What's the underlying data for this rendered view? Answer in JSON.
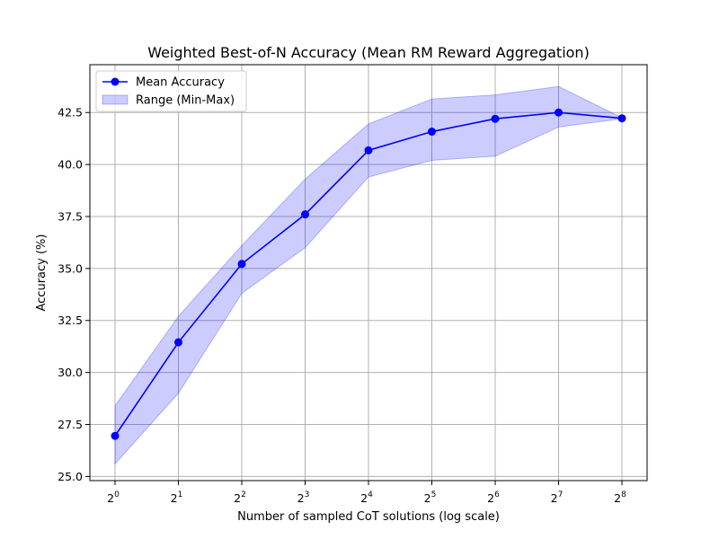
{
  "chart_data": {
    "type": "line",
    "title": "Weighted Best-of-N Accuracy (Mean RM Reward Aggregation)",
    "xlabel": "Number of sampled CoT solutions (log scale)",
    "ylabel": "Accuracy (%)",
    "x_scale": "log2",
    "x": [
      1,
      2,
      4,
      8,
      16,
      32,
      64,
      128,
      256
    ],
    "x_tick_base": "2",
    "x_tick_exponents": [
      "0",
      "1",
      "2",
      "3",
      "4",
      "5",
      "6",
      "7",
      "8"
    ],
    "ylim": [
      24.8,
      44.8
    ],
    "y_ticks": [
      25.0,
      27.5,
      30.0,
      32.5,
      35.0,
      37.5,
      40.0,
      42.5
    ],
    "y_tick_labels": [
      "25.0",
      "27.5",
      "30.0",
      "32.5",
      "35.0",
      "37.5",
      "40.0",
      "42.5"
    ],
    "grid": true,
    "legend_position": "top-left",
    "series": [
      {
        "name": "Mean Accuracy",
        "kind": "line-marker",
        "color": "#0000ff",
        "values": [
          26.95,
          31.45,
          35.22,
          37.6,
          40.68,
          41.58,
          42.2,
          42.5,
          42.22
        ]
      },
      {
        "name": "Range (Min-Max)",
        "kind": "band",
        "color": "#0000ff",
        "opacity": 0.2,
        "lower": [
          25.6,
          29.0,
          33.8,
          36.0,
          39.4,
          40.2,
          40.4,
          41.8,
          42.2
        ],
        "upper": [
          28.4,
          32.7,
          36.1,
          39.3,
          41.95,
          43.15,
          43.35,
          43.75,
          42.25
        ]
      }
    ]
  }
}
